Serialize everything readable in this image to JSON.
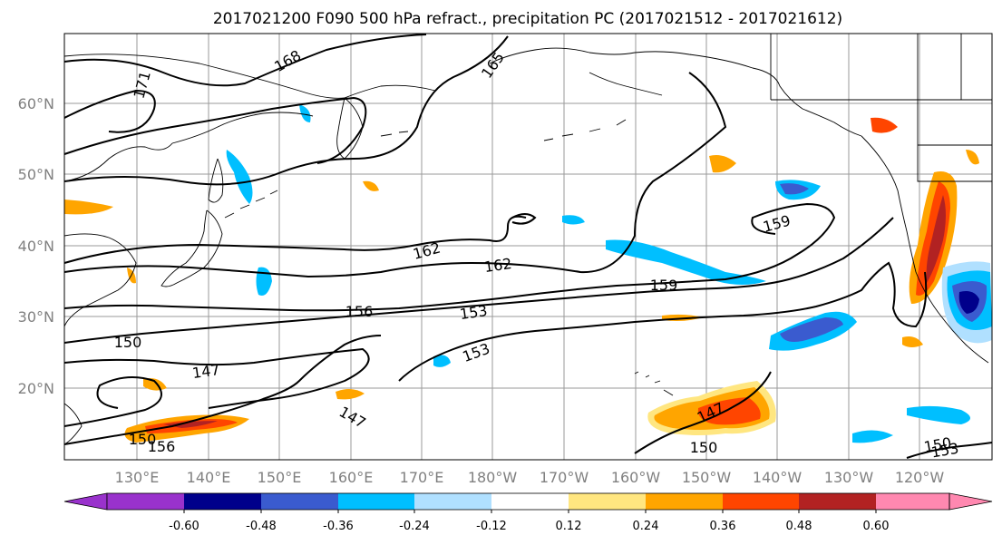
{
  "title": "2017021200 F090 500 hPa refract., precipitation PC (2017021512 - 2017021612)",
  "lat_labels": [
    "60°N",
    "50°N",
    "40°N",
    "30°N",
    "20°N"
  ],
  "lon_labels": [
    "130°E",
    "140°E",
    "150°E",
    "160°E",
    "170°E",
    "180°W",
    "170°W",
    "160°W",
    "150°W",
    "140°W",
    "130°W",
    "120°W"
  ],
  "contour_labels": [
    "168",
    "171",
    "165",
    "162",
    "162",
    "159",
    "159",
    "156",
    "153",
    "153",
    "150",
    "147",
    "147",
    "147",
    "150",
    "150",
    "153",
    "150",
    "156"
  ],
  "colorbar": {
    "ticks": [
      "-0.60",
      "-0.48",
      "-0.36",
      "-0.24",
      "-0.12",
      "0.12",
      "0.24",
      "0.36",
      "0.48",
      "0.60"
    ],
    "colors": [
      "#9932cc",
      "#00008b",
      "#3a5bcf",
      "#00bfff",
      "#b0e0ff",
      "#ffffff",
      "#ffe680",
      "#ffa500",
      "#ff4500",
      "#b22222",
      "#ff88b0"
    ]
  }
}
